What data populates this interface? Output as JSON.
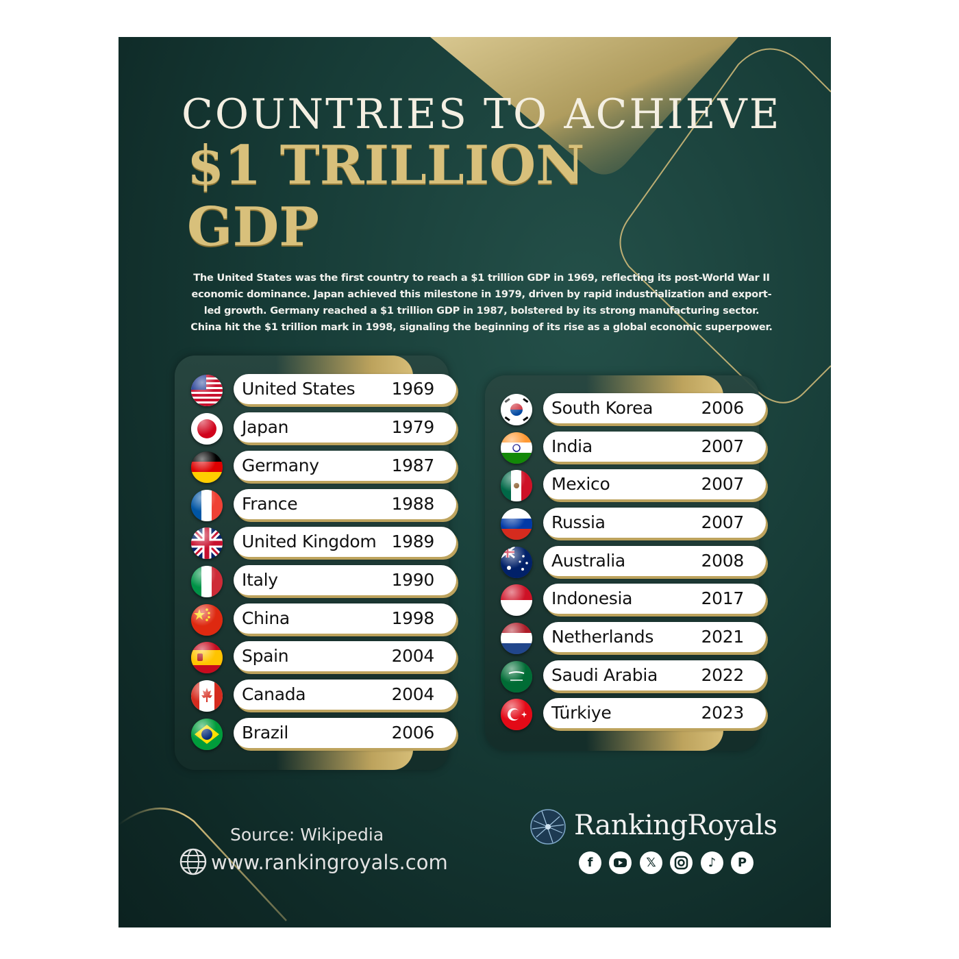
{
  "title": {
    "line1": "COUNTRIES TO ACHIEVE",
    "line2": "$1 TRILLION",
    "line3": "GDP"
  },
  "description": "The United States was the first country to reach a $1 trillion GDP in 1969, reflecting its post-World War II economic dominance.  Japan achieved this milestone in 1979, driven by rapid industrialization and export-led growth. Germany reached a $1 trillion GDP in 1987, bolstered by its strong manufacturing sector.  China hit the $1 trillion mark in 1998, signaling the beginning of its rise as a global economic superpower.",
  "countries_left": [
    {
      "name": "United States",
      "year": "1969",
      "flag": "us-flag-icon"
    },
    {
      "name": "Japan",
      "year": "1979",
      "flag": "japan-flag-icon"
    },
    {
      "name": "Germany",
      "year": "1987",
      "flag": "germany-flag-icon"
    },
    {
      "name": "France",
      "year": "1988",
      "flag": "france-flag-icon"
    },
    {
      "name": "United Kingdom",
      "year": "1989",
      "flag": "uk-flag-icon"
    },
    {
      "name": "Italy",
      "year": "1990",
      "flag": "italy-flag-icon"
    },
    {
      "name": "China",
      "year": "1998",
      "flag": "china-flag-icon"
    },
    {
      "name": "Spain",
      "year": "2004",
      "flag": "spain-flag-icon"
    },
    {
      "name": "Canada",
      "year": "2004",
      "flag": "canada-flag-icon"
    },
    {
      "name": "Brazil",
      "year": "2006",
      "flag": "brazil-flag-icon"
    }
  ],
  "countries_right": [
    {
      "name": "South Korea",
      "year": "2006",
      "flag": "south-korea-flag-icon"
    },
    {
      "name": "India",
      "year": "2007",
      "flag": "india-flag-icon"
    },
    {
      "name": "Mexico",
      "year": "2007",
      "flag": "mexico-flag-icon"
    },
    {
      "name": "Russia",
      "year": "2007",
      "flag": "russia-flag-icon"
    },
    {
      "name": "Australia",
      "year": "2008",
      "flag": "australia-flag-icon"
    },
    {
      "name": "Indonesia",
      "year": "2017",
      "flag": "indonesia-flag-icon"
    },
    {
      "name": "Netherlands",
      "year": "2021",
      "flag": "netherlands-flag-icon"
    },
    {
      "name": "Saudi Arabia",
      "year": "2022",
      "flag": "saudi-arabia-flag-icon"
    },
    {
      "name": "Türkiye",
      "year": "2023",
      "flag": "turkiye-flag-icon"
    }
  ],
  "footer": {
    "source": "Source: Wikipedia",
    "website": "www.rankingroyals.com",
    "brand": "RankingRoyals",
    "socials": [
      "facebook-icon",
      "youtube-icon",
      "x-icon",
      "instagram-icon",
      "tiktok-icon",
      "pinterest-icon"
    ]
  },
  "colors": {
    "background": "#173c37",
    "gold": "#d8c07b",
    "text_light": "#f4efe2"
  }
}
